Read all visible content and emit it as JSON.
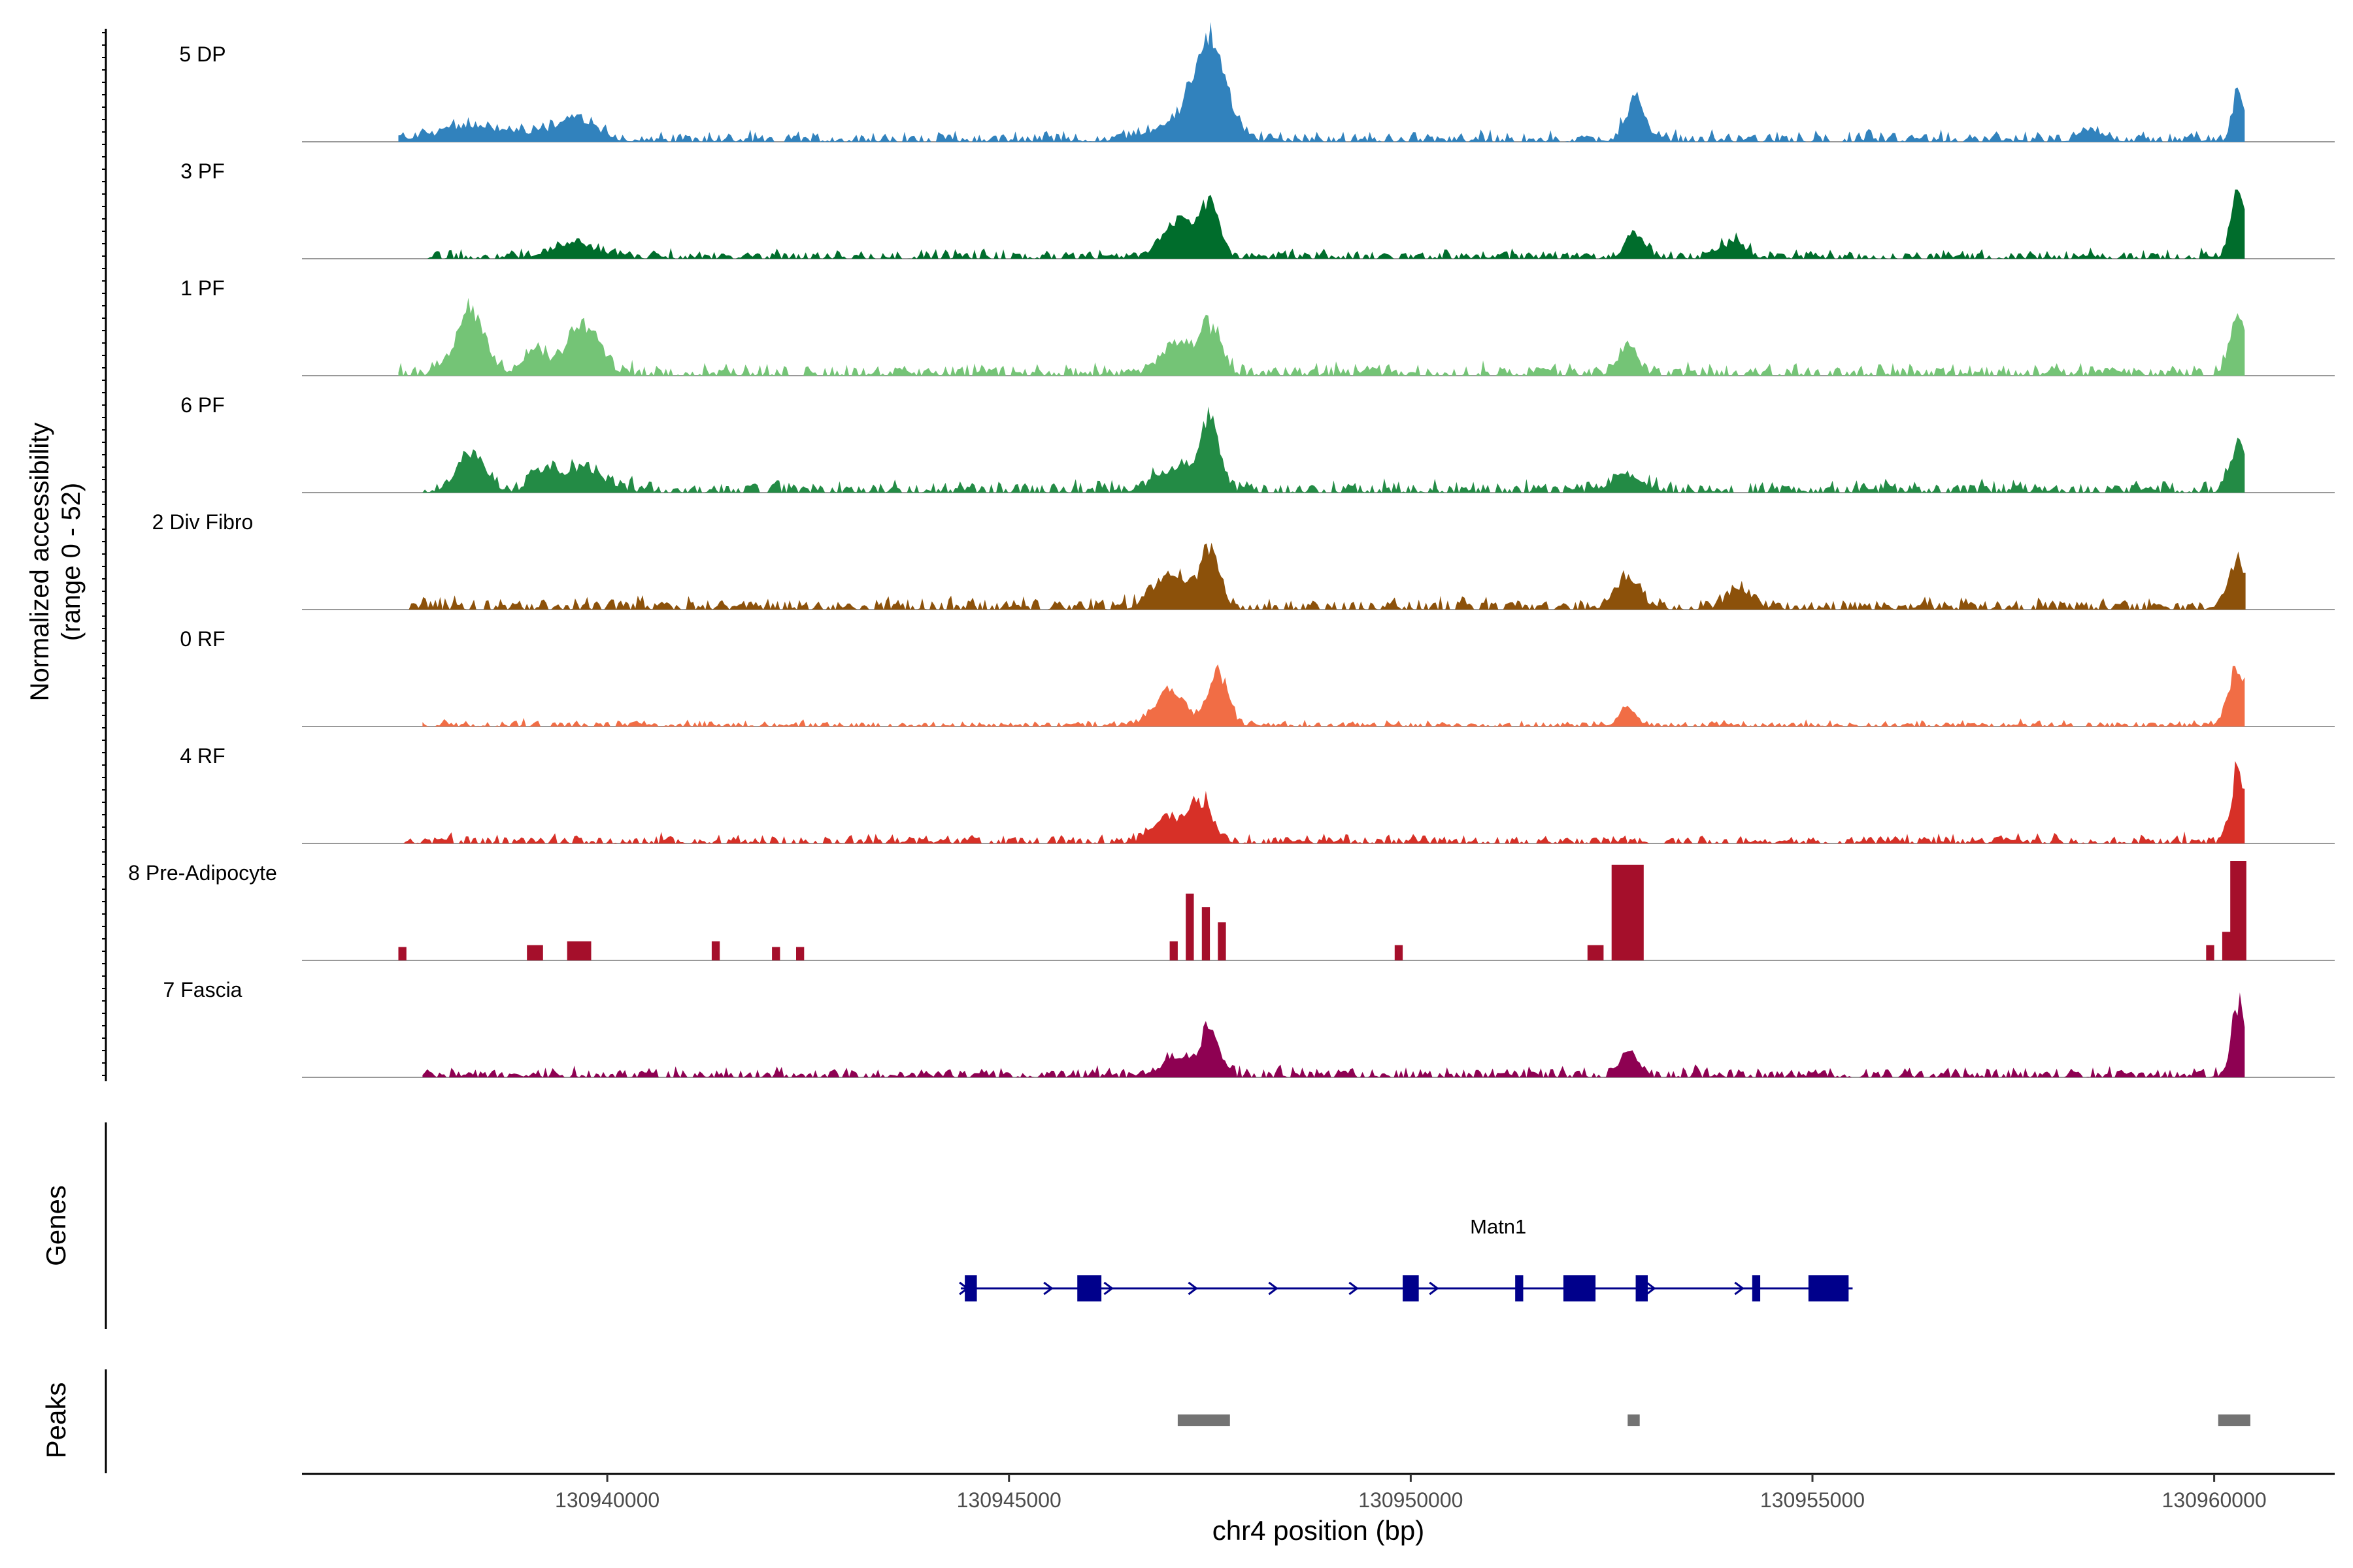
{
  "chart_data": {
    "type": "area",
    "title": "",
    "ylabel_line1": "Normalized accessibility",
    "ylabel_line2": "(range 0 - 52)",
    "ylim": [
      0,
      52
    ],
    "xlabel": "chr4 position (bp)",
    "xlim": [
      130936200,
      130961500
    ],
    "x_ticks": [
      130940000,
      130945000,
      130950000,
      130955000,
      130960000
    ],
    "x_tick_labels": [
      "130940000",
      "130945000",
      "130950000",
      "130955000",
      "130960000"
    ],
    "tracks_ylabel": "Genes",
    "peaks_ylabel": "Peaks",
    "series": [
      {
        "name": "5 DP",
        "color": "#3182BD",
        "mode": "smooth",
        "range": [
          130937400,
          130960400
        ],
        "baseline": 3,
        "noise": 4,
        "peaks": [
          [
            130938400,
            7,
            500
          ],
          [
            130939600,
            11,
            250
          ],
          [
            130947200,
            10,
            400
          ],
          [
            130947500,
            48,
            180
          ],
          [
            130952800,
            20,
            120
          ],
          [
            130958500,
            5,
            150
          ],
          [
            130960300,
            28,
            70
          ]
        ]
      },
      {
        "name": "3 PF",
        "color": "#006D2C",
        "mode": "smooth",
        "range": [
          130937700,
          130960400
        ],
        "baseline": 3,
        "noise": 3,
        "peaks": [
          [
            130939600,
            7,
            300
          ],
          [
            130947100,
            20,
            200
          ],
          [
            130947500,
            28,
            120
          ],
          [
            130952800,
            13,
            120
          ],
          [
            130954000,
            8,
            150
          ],
          [
            130960300,
            38,
            90
          ]
        ]
      },
      {
        "name": "1 PF",
        "color": "#74C476",
        "mode": "smooth",
        "range": [
          130937400,
          130960400
        ],
        "baseline": 4,
        "noise": 4,
        "peaks": [
          [
            130938300,
            32,
            180
          ],
          [
            130939100,
            12,
            150
          ],
          [
            130939700,
            25,
            200
          ],
          [
            130947100,
            15,
            200
          ],
          [
            130947500,
            23,
            130
          ],
          [
            130952700,
            14,
            120
          ],
          [
            130960300,
            30,
            100
          ]
        ]
      },
      {
        "name": "6 PF",
        "color": "#238B45",
        "mode": "smooth",
        "range": [
          130937700,
          130960400
        ],
        "baseline": 4,
        "noise": 4,
        "peaks": [
          [
            130938300,
            18,
            180
          ],
          [
            130939200,
            10,
            150
          ],
          [
            130939700,
            13,
            250
          ],
          [
            130947100,
            12,
            250
          ],
          [
            130947500,
            33,
            120
          ],
          [
            130952700,
            8,
            200
          ],
          [
            130960300,
            25,
            100
          ]
        ]
      },
      {
        "name": "2 Div Fibro",
        "color": "#8C510A",
        "mode": "smooth",
        "range": [
          130937500,
          130960400
        ],
        "baseline": 4,
        "noise": 4,
        "peaks": [
          [
            130947000,
            18,
            200
          ],
          [
            130947500,
            30,
            120
          ],
          [
            130952700,
            16,
            150
          ],
          [
            130954100,
            10,
            150
          ],
          [
            130960300,
            25,
            100
          ]
        ]
      },
      {
        "name": "0 RF",
        "color": "#F16D45",
        "mode": "smooth",
        "range": [
          130937700,
          130960400
        ],
        "baseline": 2,
        "noise": 2,
        "peaks": [
          [
            130947000,
            18,
            200
          ],
          [
            130947600,
            28,
            120
          ],
          [
            130952700,
            10,
            100
          ],
          [
            130960300,
            30,
            120
          ]
        ]
      },
      {
        "name": "4 RF",
        "color": "#D73027",
        "mode": "smooth",
        "range": [
          130937400,
          130960400
        ],
        "baseline": 3,
        "noise": 3,
        "peaks": [
          [
            130947000,
            12,
            200
          ],
          [
            130947400,
            20,
            140
          ],
          [
            130960300,
            40,
            80
          ]
        ]
      },
      {
        "name": "8 Pre-Adipocyte",
        "color": "#A50F2B",
        "mode": "blocks",
        "range": [
          130937400,
          130960400
        ],
        "blocks": [
          [
            130937400,
            130937500,
            7
          ],
          [
            130939000,
            130939200,
            8
          ],
          [
            130939500,
            130939800,
            10
          ],
          [
            130941300,
            130941400,
            10
          ],
          [
            130942050,
            130942150,
            7
          ],
          [
            130942350,
            130942450,
            7
          ],
          [
            130947000,
            130947100,
            10
          ],
          [
            130947200,
            130947300,
            35
          ],
          [
            130947400,
            130947500,
            28
          ],
          [
            130947600,
            130947700,
            20
          ],
          [
            130949800,
            130949900,
            8
          ],
          [
            130952200,
            130952400,
            8
          ],
          [
            130952500,
            130952900,
            50
          ],
          [
            130959900,
            130960000,
            8
          ],
          [
            130960100,
            130960200,
            15
          ],
          [
            130960200,
            130960400,
            52
          ]
        ]
      },
      {
        "name": "7 Fascia",
        "color": "#8E0152",
        "mode": "smooth",
        "range": [
          130937700,
          130960400
        ],
        "baseline": 3,
        "noise": 4,
        "peaks": [
          [
            130947100,
            10,
            200
          ],
          [
            130947500,
            22,
            120
          ],
          [
            130952700,
            12,
            100
          ],
          [
            130960300,
            38,
            80
          ]
        ]
      }
    ],
    "gene": {
      "name": "Matn1",
      "start": 130944400,
      "end": 130955500,
      "color": "#00008B",
      "exons": [
        [
          130944450,
          130944600
        ],
        [
          130945850,
          130946150
        ],
        [
          130949900,
          130950100
        ],
        [
          130951300,
          130951400
        ],
        [
          130951900,
          130952300
        ],
        [
          130952800,
          130952950
        ],
        [
          130954250,
          130954350
        ],
        [
          130954950,
          130955450
        ]
      ],
      "arrows": [
        130944450,
        130945500,
        130946250,
        130947300,
        130948300,
        130949300,
        130950300,
        130953000,
        130954100
      ]
    },
    "peaks": [
      [
        130947100,
        130947750
      ],
      [
        130952700,
        130952850
      ],
      [
        130960050,
        130960450
      ]
    ]
  }
}
